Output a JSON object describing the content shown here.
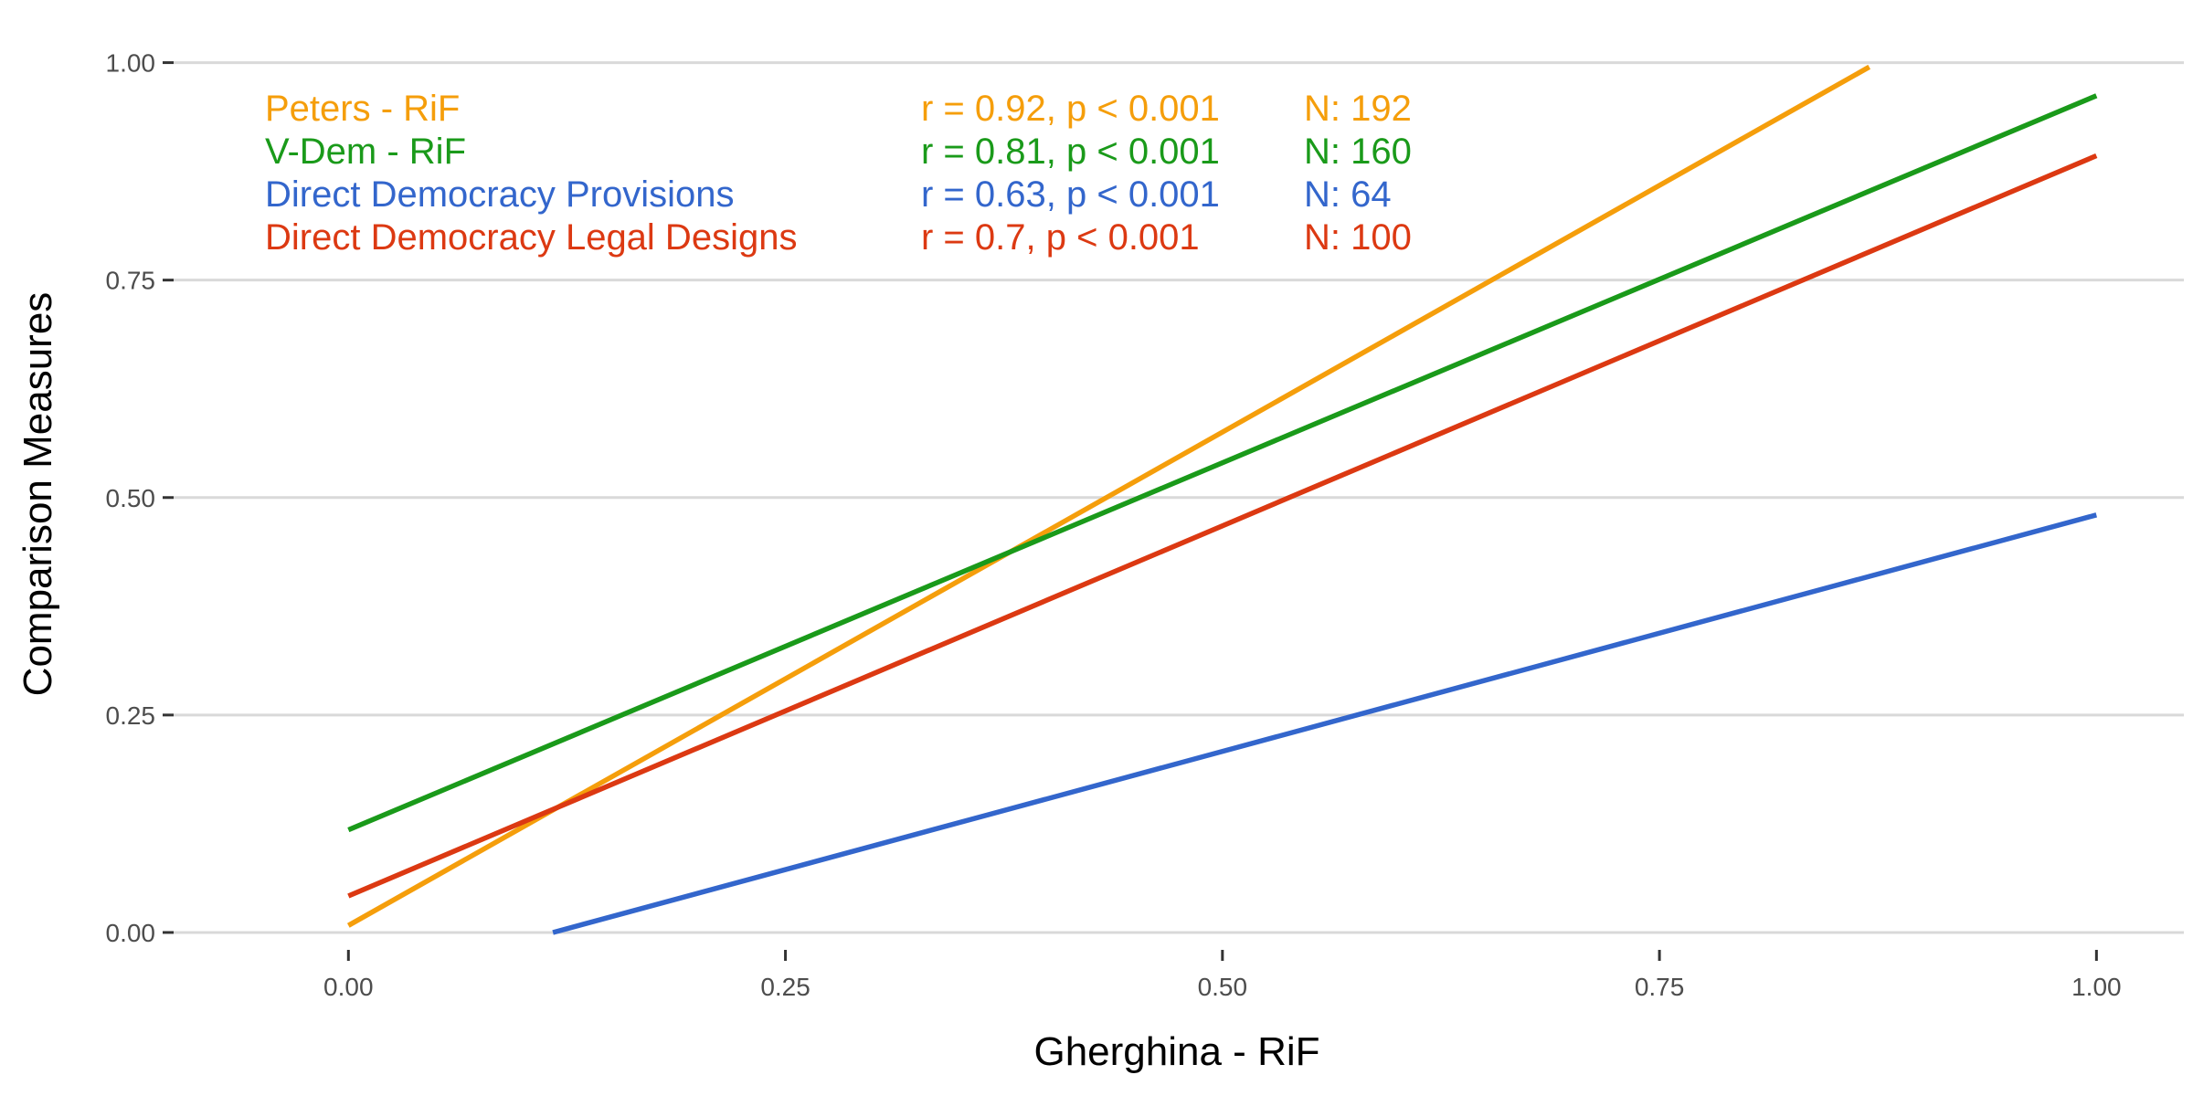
{
  "chart_data": {
    "type": "line",
    "title": "",
    "xlabel": "Gherghina - RiF",
    "ylabel": "Comparison Measures",
    "xlim": [
      -0.1,
      1.05
    ],
    "ylim": [
      -0.02,
      1.03
    ],
    "x_ticks": [
      "0.00",
      "0.25",
      "0.50",
      "0.75",
      "1.00"
    ],
    "y_ticks": [
      "0.00",
      "0.25",
      "0.50",
      "0.75",
      "1.00"
    ],
    "grid": "horizontal major gridlines",
    "legend_position": "top-left",
    "series": [
      {
        "name": "Peters - RiF",
        "stat": "r = 0.92, p < 0.001",
        "n": "N: 192",
        "color": "#f59e0b",
        "x": [
          0.0,
          0.87
        ],
        "y": [
          0.008,
          0.995
        ]
      },
      {
        "name": "V-Dem - RiF",
        "stat": "r = 0.81, p < 0.001",
        "n": "N: 160",
        "color": "#1a9a1a",
        "x": [
          0.0,
          1.0
        ],
        "y": [
          0.118,
          0.962
        ]
      },
      {
        "name": "Direct Democracy Provisions",
        "stat": "r = 0.63, p < 0.001",
        "n": "N: 64",
        "color": "#3366cc",
        "x": [
          0.117,
          1.0
        ],
        "y": [
          0.0,
          0.48
        ]
      },
      {
        "name": "Direct Democracy Legal Designs",
        "stat": "r = 0.7, p < 0.001",
        "n": "N: 100",
        "color": "#dc3912",
        "x": [
          0.0,
          1.0
        ],
        "y": [
          0.042,
          0.893
        ]
      }
    ]
  }
}
